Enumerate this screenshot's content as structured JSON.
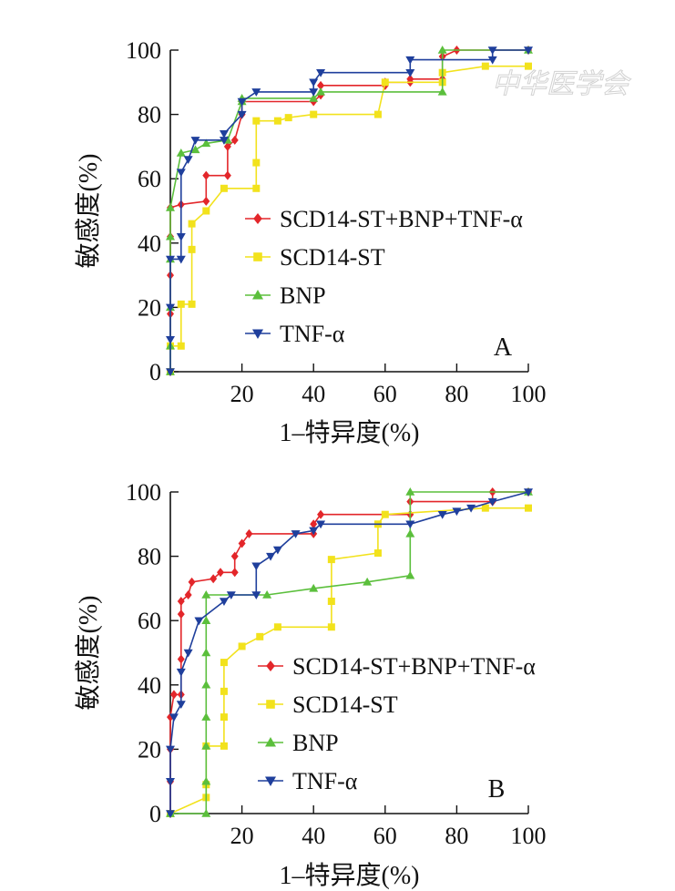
{
  "watermark": "中华医学会",
  "colors": {
    "SCD14-ST+BNP+TNF-α": "#e3262a",
    "SCD14-ST": "#f2e21c",
    "BNP": "#5bbf3c",
    "TNF-α": "#1f3f9c",
    "axis": "#111111"
  },
  "chart_data": [
    {
      "type": "line",
      "panel_label": "A",
      "xlabel": "1–特异度(%)",
      "ylabel": "敏感度(%)",
      "xlim": [
        0,
        100
      ],
      "ylim": [
        0,
        100
      ],
      "xticks": [
        20,
        40,
        60,
        80,
        100
      ],
      "yticks": [
        0,
        20,
        40,
        60,
        80,
        100
      ],
      "legend_position": "center-right",
      "grid": false,
      "series": [
        {
          "name": "SCD14-ST+BNP+TNF-α",
          "marker": "diamond",
          "points": [
            [
              0,
              0
            ],
            [
              0,
              8
            ],
            [
              0,
              18
            ],
            [
              0,
              30
            ],
            [
              0,
              42
            ],
            [
              0,
              51
            ],
            [
              3,
              52
            ],
            [
              10,
              53
            ],
            [
              10,
              61
            ],
            [
              16,
              61
            ],
            [
              16,
              70
            ],
            [
              18,
              72
            ],
            [
              20,
              80
            ],
            [
              20,
              84
            ],
            [
              40,
              84
            ],
            [
              42,
              86
            ],
            [
              42,
              89
            ],
            [
              60,
              89
            ],
            [
              60,
              90
            ],
            [
              67,
              90
            ],
            [
              67,
              91
            ],
            [
              76,
              91
            ],
            [
              76,
              98
            ],
            [
              80,
              100
            ],
            [
              100,
              100
            ]
          ]
        },
        {
          "name": "SCD14-ST",
          "marker": "square",
          "points": [
            [
              0,
              0
            ],
            [
              0,
              8
            ],
            [
              3,
              8
            ],
            [
              3,
              21
            ],
            [
              6,
              21
            ],
            [
              6,
              38
            ],
            [
              6,
              46
            ],
            [
              10,
              50
            ],
            [
              15,
              57
            ],
            [
              24,
              57
            ],
            [
              24,
              65
            ],
            [
              24,
              78
            ],
            [
              30,
              78
            ],
            [
              33,
              79
            ],
            [
              40,
              80
            ],
            [
              58,
              80
            ],
            [
              60,
              90
            ],
            [
              76,
              90
            ],
            [
              76,
              93
            ],
            [
              88,
              95
            ],
            [
              100,
              95
            ]
          ]
        },
        {
          "name": "BNP",
          "marker": "triangle-up",
          "points": [
            [
              0,
              0
            ],
            [
              0,
              8
            ],
            [
              0,
              20
            ],
            [
              0,
              35
            ],
            [
              0,
              42
            ],
            [
              0,
              51
            ],
            [
              3,
              68
            ],
            [
              7,
              69
            ],
            [
              10,
              71
            ],
            [
              16,
              72
            ],
            [
              20,
              84
            ],
            [
              20,
              85
            ],
            [
              40,
              85
            ],
            [
              42,
              87
            ],
            [
              76,
              87
            ],
            [
              76,
              100
            ],
            [
              100,
              100
            ]
          ]
        },
        {
          "name": "TNF-α",
          "marker": "triangle-down",
          "points": [
            [
              0,
              0
            ],
            [
              0,
              10
            ],
            [
              0,
              20
            ],
            [
              0,
              35
            ],
            [
              3,
              35
            ],
            [
              3,
              42
            ],
            [
              3,
              62
            ],
            [
              5,
              66
            ],
            [
              7,
              72
            ],
            [
              15,
              72
            ],
            [
              15,
              74
            ],
            [
              20,
              80
            ],
            [
              20,
              84
            ],
            [
              24,
              87
            ],
            [
              40,
              87
            ],
            [
              40,
              90
            ],
            [
              42,
              93
            ],
            [
              67,
              93
            ],
            [
              67,
              97
            ],
            [
              90,
              97
            ],
            [
              90,
              100
            ],
            [
              100,
              100
            ]
          ]
        }
      ]
    },
    {
      "type": "line",
      "panel_label": "B",
      "xlabel": "1–特异度(%)",
      "ylabel": "敏感度(%)",
      "xlim": [
        0,
        100
      ],
      "ylim": [
        0,
        100
      ],
      "xticks": [
        20,
        40,
        60,
        80,
        100
      ],
      "yticks": [
        0,
        20,
        40,
        60,
        80,
        100
      ],
      "legend_position": "center-right",
      "grid": false,
      "series": [
        {
          "name": "SCD14-ST+BNP+TNF-α",
          "marker": "diamond",
          "points": [
            [
              0,
              0
            ],
            [
              0,
              10
            ],
            [
              0,
              20
            ],
            [
              0,
              30
            ],
            [
              1,
              37
            ],
            [
              3,
              37
            ],
            [
              3,
              48
            ],
            [
              3,
              62
            ],
            [
              3,
              66
            ],
            [
              5,
              68
            ],
            [
              6,
              72
            ],
            [
              12,
              73
            ],
            [
              14,
              75
            ],
            [
              18,
              75
            ],
            [
              18,
              80
            ],
            [
              20,
              84
            ],
            [
              22,
              87
            ],
            [
              40,
              87
            ],
            [
              40,
              90
            ],
            [
              42,
              93
            ],
            [
              67,
              93
            ],
            [
              67,
              97
            ],
            [
              90,
              97
            ],
            [
              90,
              100
            ],
            [
              100,
              100
            ]
          ]
        },
        {
          "name": "SCD14-ST",
          "marker": "square",
          "points": [
            [
              0,
              0
            ],
            [
              10,
              5
            ],
            [
              10,
              9
            ],
            [
              10,
              21
            ],
            [
              15,
              21
            ],
            [
              15,
              30
            ],
            [
              15,
              38
            ],
            [
              15,
              47
            ],
            [
              20,
              52
            ],
            [
              25,
              55
            ],
            [
              30,
              58
            ],
            [
              45,
              58
            ],
            [
              45,
              66
            ],
            [
              45,
              79
            ],
            [
              58,
              81
            ],
            [
              58,
              90
            ],
            [
              60,
              93
            ],
            [
              88,
              95
            ],
            [
              100,
              95
            ]
          ]
        },
        {
          "name": "BNP",
          "marker": "triangle-up",
          "points": [
            [
              0,
              0
            ],
            [
              10,
              0
            ],
            [
              10,
              10
            ],
            [
              10,
              21
            ],
            [
              10,
              30
            ],
            [
              10,
              40
            ],
            [
              10,
              50
            ],
            [
              10,
              60
            ],
            [
              10,
              68
            ],
            [
              27,
              68
            ],
            [
              40,
              70
            ],
            [
              55,
              72
            ],
            [
              67,
              74
            ],
            [
              67,
              87
            ],
            [
              67,
              100
            ],
            [
              100,
              100
            ]
          ]
        },
        {
          "name": "TNF-α",
          "marker": "triangle-down",
          "points": [
            [
              0,
              0
            ],
            [
              0,
              10
            ],
            [
              0,
              20
            ],
            [
              1,
              30
            ],
            [
              3,
              34
            ],
            [
              3,
              44
            ],
            [
              5,
              50
            ],
            [
              8,
              60
            ],
            [
              15,
              66
            ],
            [
              17,
              68
            ],
            [
              24,
              68
            ],
            [
              24,
              77
            ],
            [
              28,
              80
            ],
            [
              30,
              82
            ],
            [
              35,
              87
            ],
            [
              40,
              88
            ],
            [
              42,
              90
            ],
            [
              67,
              90
            ],
            [
              76,
              93
            ],
            [
              80,
              94
            ],
            [
              84,
              95
            ],
            [
              90,
              97
            ],
            [
              100,
              100
            ]
          ]
        }
      ]
    }
  ]
}
